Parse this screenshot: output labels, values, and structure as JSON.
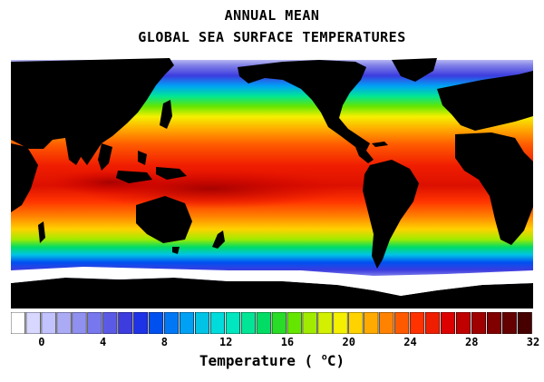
{
  "title": {
    "line1": "ANNUAL MEAN",
    "line2": "GLOBAL SEA SURFACE TEMPERATURES"
  },
  "legend": {
    "label_prefix": "Temperature ( ",
    "label_degree": "o",
    "label_unit": "C)",
    "ticks": [
      "0",
      "4",
      "8",
      "12",
      "16",
      "20",
      "24",
      "28",
      "32"
    ],
    "tick_values": [
      0,
      4,
      8,
      12,
      16,
      20,
      24,
      28,
      32
    ],
    "range": [
      -2,
      32
    ],
    "colors": [
      "#ffffff",
      "#d7d7ff",
      "#c2c2ff",
      "#aaaaf5",
      "#9090f0",
      "#7878ee",
      "#5a5ae6",
      "#3c3cdf",
      "#1e32e6",
      "#0050f0",
      "#0078f5",
      "#00a0f5",
      "#00c3e6",
      "#00dcdc",
      "#00e6be",
      "#00e696",
      "#00dc64",
      "#28dc28",
      "#64e600",
      "#a0eb00",
      "#d2f000",
      "#f5f000",
      "#ffd200",
      "#ffaa00",
      "#ff8200",
      "#ff5a00",
      "#ff3200",
      "#f01e00",
      "#dc0000",
      "#c00000",
      "#a00000",
      "#800000",
      "#640000",
      "#460000"
    ]
  },
  "map": {
    "land_color": "#000000",
    "ice_color": "#ffffff",
    "projection": "equirectangular, centered 150E"
  }
}
